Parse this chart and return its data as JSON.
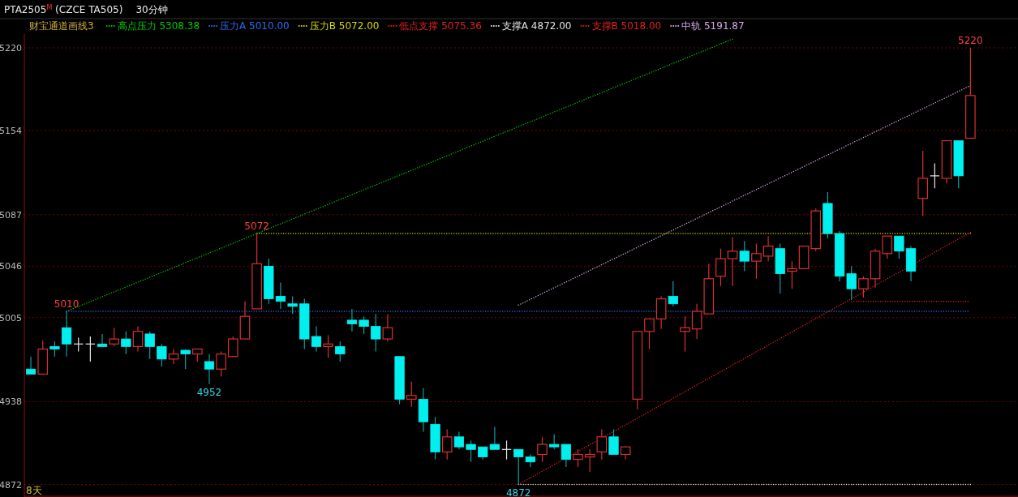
{
  "chart_data": {
    "type": "candlestick",
    "title": "PTA2505$^{M}$ (CZCE TA505)",
    "subtitle": "30分钟",
    "legend_title": "财宝通道画线3",
    "categories": [
      null,
      null,
      null,
      null,
      null,
      null,
      null,
      null,
      null,
      null,
      null,
      null,
      null,
      null,
      null,
      null,
      null,
      null,
      null,
      null,
      null,
      null,
      null,
      null,
      null,
      null,
      null,
      null,
      null,
      null,
      null,
      null,
      null,
      null,
      null,
      null,
      null,
      null,
      null,
      null,
      null,
      null,
      null,
      null,
      null,
      null,
      null,
      null,
      null,
      null,
      null,
      null,
      null,
      null,
      null,
      null,
      null,
      null,
      null,
      null,
      null,
      null,
      null,
      null,
      null,
      null,
      null,
      null,
      null,
      null,
      null,
      null,
      null,
      null,
      null,
      null,
      null,
      null,
      null,
      null
    ],
    "ohlc": [
      [
        4964,
        4974,
        4960,
        4960
      ],
      [
        4960,
        4987,
        4960,
        4980
      ],
      [
        4982,
        4986,
        4974,
        4980
      ],
      [
        4997,
        5010,
        4974,
        4984
      ],
      [
        4984,
        4989,
        4978,
        4984
      ],
      [
        4984,
        4990,
        4970,
        4984
      ],
      [
        4984,
        4992,
        4982,
        4982
      ],
      [
        4984,
        4997,
        4982,
        4988
      ],
      [
        4988,
        4994,
        4976,
        4982
      ],
      [
        4982,
        4998,
        4978,
        4994
      ],
      [
        4992,
        4994,
        4972,
        4982
      ],
      [
        4982,
        4984,
        4966,
        4972
      ],
      [
        4972,
        4980,
        4968,
        4976
      ],
      [
        4979,
        4980,
        4964,
        4976
      ],
      [
        4976,
        4980,
        4970,
        4980
      ],
      [
        4970,
        4976,
        4952,
        4964
      ],
      [
        4964,
        4978,
        4958,
        4976
      ],
      [
        4974,
        4990,
        4974,
        4988
      ],
      [
        4988,
        5018,
        4988,
        5006
      ],
      [
        5012,
        5072,
        5012,
        5048
      ],
      [
        5046,
        5052,
        5016,
        5020
      ],
      [
        5022,
        5033,
        5012,
        5018
      ],
      [
        5016,
        5022,
        5008,
        5014
      ],
      [
        5016,
        5020,
        4980,
        4988
      ],
      [
        4990,
        4998,
        4978,
        4982
      ],
      [
        4982,
        4991,
        4973,
        4984
      ],
      [
        4982,
        4986,
        4970,
        4976
      ],
      [
        5003,
        5012,
        4994,
        5000
      ],
      [
        5003,
        5006,
        4992,
        4998
      ],
      [
        4998,
        5008,
        4978,
        4988
      ],
      [
        4988,
        5008,
        4986,
        4997
      ],
      [
        4974,
        4974,
        4936,
        4940
      ],
      [
        4940,
        4954,
        4934,
        4943
      ],
      [
        4940,
        4949,
        4914,
        4922
      ],
      [
        4920,
        4926,
        4892,
        4898
      ],
      [
        4898,
        4916,
        4892,
        4910
      ],
      [
        4910,
        4914,
        4900,
        4902
      ],
      [
        4904,
        4907,
        4890,
        4900
      ],
      [
        4902,
        4902,
        4892,
        4894
      ],
      [
        4904,
        4918,
        4900,
        4900
      ],
      [
        4900,
        4907,
        4892,
        4900
      ],
      [
        4900,
        4900,
        4872,
        4894
      ],
      [
        4894,
        4896,
        4886,
        4890
      ],
      [
        4896,
        4910,
        4890,
        4904
      ],
      [
        4904,
        4912,
        4900,
        4902
      ],
      [
        4904,
        4904,
        4886,
        4892
      ],
      [
        4892,
        4900,
        4886,
        4896
      ],
      [
        4894,
        4900,
        4882,
        4896
      ],
      [
        4898,
        4916,
        4892,
        4910
      ],
      [
        4910,
        4916,
        4896,
        4896
      ],
      [
        4896,
        4902,
        4892,
        4902
      ],
      [
        4940,
        4994,
        4932,
        4994
      ],
      [
        4994,
        5004,
        4980,
        5004
      ],
      [
        5004,
        5022,
        4996,
        5020
      ],
      [
        5022,
        5034,
        5014,
        5016
      ],
      [
        4994,
        5006,
        4978,
        4997
      ],
      [
        4996,
        5016,
        4988,
        5010
      ],
      [
        5008,
        5048,
        5008,
        5036
      ],
      [
        5038,
        5060,
        5030,
        5052
      ],
      [
        5052,
        5069,
        5030,
        5058
      ],
      [
        5058,
        5066,
        5042,
        5050
      ],
      [
        5050,
        5064,
        5036,
        5056
      ],
      [
        5054,
        5070,
        5050,
        5062
      ],
      [
        5060,
        5064,
        5024,
        5040
      ],
      [
        5042,
        5050,
        5028,
        5044
      ],
      [
        5044,
        5062,
        5044,
        5062
      ],
      [
        5060,
        5092,
        5058,
        5090
      ],
      [
        5096,
        5105,
        5068,
        5072
      ],
      [
        5072,
        5074,
        5034,
        5038
      ],
      [
        5040,
        5046,
        5019,
        5028
      ],
      [
        5028,
        5038,
        5021,
        5036
      ],
      [
        5036,
        5060,
        5029,
        5058
      ],
      [
        5056,
        5070,
        5052,
        5070
      ],
      [
        5070,
        5070,
        5052,
        5058
      ],
      [
        5060,
        5062,
        5034,
        5042
      ],
      [
        5100,
        5138,
        5086,
        5116
      ],
      [
        5118,
        5128,
        5108,
        5118
      ],
      [
        5116,
        5146,
        5112,
        5146
      ],
      [
        5146,
        5146,
        5108,
        5118
      ],
      [
        5148,
        5220,
        5148,
        5182
      ]
    ],
    "ylim": [
      4864,
      5231
    ],
    "yticks": [
      4872,
      4938,
      5005,
      5046,
      5087,
      5154,
      5220
    ],
    "grid": "y",
    "legend": "top left",
    "series": [
      {
        "name": "高点压力 5308.38",
        "type": "line",
        "color": "#00c800",
        "line_style": "dotted",
        "values": [
          null,
          null,
          null,
          5010,
          null,
          null,
          null,
          null,
          null,
          null,
          null,
          null,
          null,
          null,
          null,
          null,
          null,
          null,
          null,
          null,
          null,
          null,
          null,
          null,
          null,
          null,
          null,
          null,
          null,
          null,
          null,
          null,
          null,
          null,
          null,
          null,
          null,
          null,
          null,
          null,
          null,
          null,
          null,
          null,
          null,
          null,
          null,
          null,
          null,
          null,
          null,
          null,
          null,
          null,
          null,
          null,
          null,
          null,
          null,
          5227,
          null,
          null,
          null,
          null,
          null,
          null,
          null,
          null,
          null,
          null,
          null,
          null,
          null,
          null,
          null,
          null,
          null,
          null,
          null,
          null
        ]
      },
      {
        "name": "压力A 5010.00",
        "type": "line",
        "color": "#2a6cf0",
        "line_style": "dotted",
        "values": [
          null,
          null,
          null,
          5010,
          null,
          null,
          null,
          null,
          null,
          null,
          null,
          null,
          null,
          null,
          null,
          null,
          null,
          null,
          null,
          null,
          null,
          null,
          null,
          null,
          null,
          null,
          null,
          null,
          null,
          null,
          null,
          null,
          null,
          null,
          null,
          null,
          null,
          null,
          null,
          null,
          null,
          null,
          null,
          null,
          null,
          null,
          null,
          null,
          null,
          null,
          null,
          null,
          null,
          null,
          null,
          null,
          null,
          null,
          null,
          null,
          null,
          null,
          null,
          null,
          null,
          null,
          null,
          null,
          null,
          null,
          null,
          null,
          null,
          null,
          null,
          null,
          null,
          null,
          null,
          5010
        ]
      },
      {
        "name": "压力B 5072.00",
        "type": "line",
        "color": "#d8d800",
        "line_style": "dotted",
        "values": [
          null,
          null,
          null,
          null,
          null,
          null,
          null,
          null,
          null,
          null,
          null,
          null,
          null,
          null,
          null,
          null,
          null,
          null,
          null,
          5072,
          null,
          null,
          null,
          null,
          null,
          null,
          null,
          null,
          null,
          null,
          null,
          null,
          null,
          null,
          null,
          null,
          null,
          null,
          null,
          null,
          null,
          null,
          null,
          null,
          null,
          null,
          null,
          null,
          null,
          null,
          null,
          null,
          null,
          null,
          null,
          null,
          null,
          null,
          null,
          null,
          null,
          null,
          null,
          null,
          null,
          null,
          null,
          null,
          null,
          null,
          null,
          null,
          null,
          null,
          null,
          null,
          null,
          null,
          null,
          5072
        ]
      },
      {
        "name": "低点支撑 5075.36",
        "type": "line",
        "color": "#e02020",
        "line_style": "dotted",
        "values": [
          null,
          null,
          null,
          null,
          null,
          null,
          null,
          null,
          null,
          null,
          null,
          null,
          null,
          null,
          null,
          null,
          null,
          null,
          null,
          null,
          null,
          null,
          null,
          null,
          null,
          null,
          null,
          null,
          null,
          null,
          null,
          null,
          null,
          null,
          null,
          null,
          null,
          null,
          null,
          null,
          null,
          4872,
          null,
          null,
          null,
          null,
          null,
          null,
          null,
          null,
          null,
          null,
          null,
          null,
          null,
          null,
          null,
          null,
          null,
          null,
          null,
          null,
          null,
          null,
          null,
          null,
          null,
          null,
          null,
          null,
          null,
          null,
          null,
          null,
          null,
          null,
          null,
          null,
          null,
          5073
        ]
      },
      {
        "name": "支撑A 4872.00",
        "type": "line",
        "color": "#e0e0e0",
        "line_style": "dotted",
        "values": [
          null,
          null,
          null,
          null,
          null,
          null,
          null,
          null,
          null,
          null,
          null,
          null,
          null,
          null,
          null,
          null,
          null,
          null,
          null,
          null,
          null,
          null,
          null,
          null,
          null,
          null,
          null,
          null,
          null,
          null,
          null,
          null,
          null,
          null,
          null,
          null,
          null,
          null,
          null,
          null,
          null,
          4872,
          null,
          null,
          null,
          null,
          null,
          null,
          null,
          null,
          null,
          null,
          null,
          null,
          null,
          null,
          null,
          null,
          null,
          null,
          null,
          null,
          null,
          null,
          null,
          null,
          null,
          null,
          null,
          null,
          null,
          null,
          null,
          null,
          null,
          null,
          null,
          null,
          null,
          4872
        ]
      },
      {
        "name": "支撑B 5018.00",
        "type": "line",
        "color": "#e02020",
        "line_style": "dotted",
        "values": [
          null,
          null,
          null,
          null,
          null,
          null,
          null,
          null,
          null,
          null,
          null,
          null,
          null,
          null,
          null,
          null,
          null,
          null,
          null,
          null,
          null,
          null,
          null,
          null,
          null,
          null,
          null,
          null,
          null,
          null,
          null,
          null,
          null,
          null,
          null,
          null,
          null,
          null,
          null,
          null,
          null,
          null,
          null,
          null,
          null,
          null,
          null,
          null,
          null,
          null,
          null,
          null,
          null,
          null,
          null,
          null,
          null,
          null,
          null,
          null,
          null,
          null,
          null,
          null,
          null,
          null,
          null,
          null,
          null,
          5018,
          null,
          null,
          null,
          null,
          null,
          null,
          null,
          null,
          null,
          5018
        ]
      },
      {
        "name": "中轨 5191.87",
        "type": "line",
        "color": "#d8a8e8",
        "line_style": "dotted",
        "values": [
          null,
          null,
          null,
          null,
          null,
          null,
          null,
          null,
          null,
          null,
          null,
          null,
          null,
          null,
          null,
          null,
          null,
          null,
          null,
          null,
          null,
          null,
          null,
          null,
          null,
          null,
          null,
          null,
          null,
          null,
          null,
          null,
          null,
          null,
          null,
          null,
          null,
          null,
          null,
          null,
          null,
          5015,
          null,
          null,
          null,
          null,
          null,
          null,
          null,
          null,
          null,
          null,
          null,
          null,
          null,
          null,
          null,
          null,
          null,
          null,
          null,
          null,
          null,
          null,
          null,
          null,
          null,
          null,
          null,
          null,
          null,
          null,
          null,
          null,
          null,
          null,
          null,
          null,
          null,
          5190
        ]
      }
    ],
    "annotations": [
      {
        "text": "5010",
        "y": 5010
      },
      {
        "text": "5072",
        "y": 5072
      },
      {
        "text": "4952",
        "y": 4952
      },
      {
        "text": "4872",
        "y": 4872
      },
      {
        "text": "5220",
        "y": 5220
      },
      "8天"
    ]
  }
}
